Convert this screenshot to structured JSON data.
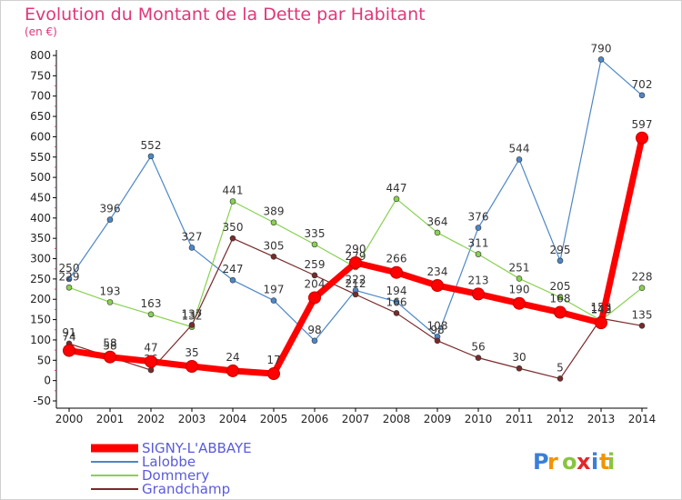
{
  "chart_data": {
    "type": "line",
    "title": "Evolution du Montant de la Dette par Habitant",
    "subtitle": "(en €)",
    "x": [
      "2000",
      "2001",
      "2002",
      "2003",
      "2004",
      "2005",
      "2006",
      "2007",
      "2008",
      "2009",
      "2010",
      "2011",
      "2012",
      "2013",
      "2014"
    ],
    "ylim": [
      -50,
      800
    ],
    "yticks": [
      -50,
      0,
      50,
      100,
      150,
      200,
      250,
      300,
      350,
      400,
      450,
      500,
      550,
      600,
      650,
      700,
      750,
      800
    ],
    "grid": false,
    "legend_position": "bottom-left",
    "series": [
      {
        "name": "SIGNY-L'ABBAYE",
        "color": "#ff0000",
        "values": [
          74,
          58,
          47,
          35,
          24,
          17,
          204,
          290,
          266,
          234,
          213,
          190,
          168,
          142,
          597
        ]
      },
      {
        "name": "Lalobbe",
        "color": "#4d87c7",
        "values": [
          250,
          396,
          552,
          327,
          247,
          197,
          98,
          222,
          194,
          108,
          376,
          544,
          295,
          790,
          702
        ]
      },
      {
        "name": "Dommery",
        "color": "#88d151",
        "values": [
          229,
          193,
          163,
          132,
          441,
          389,
          335,
          279,
          447,
          364,
          311,
          251,
          205,
          148,
          228
        ]
      },
      {
        "name": "Grandchamp",
        "color": "#7a2a2a",
        "values": [
          91,
          58,
          26,
          137,
          350,
          305,
          259,
          212,
          166,
          98,
          56,
          30,
          5,
          153,
          135
        ]
      }
    ]
  },
  "watermark": "Proxiti"
}
